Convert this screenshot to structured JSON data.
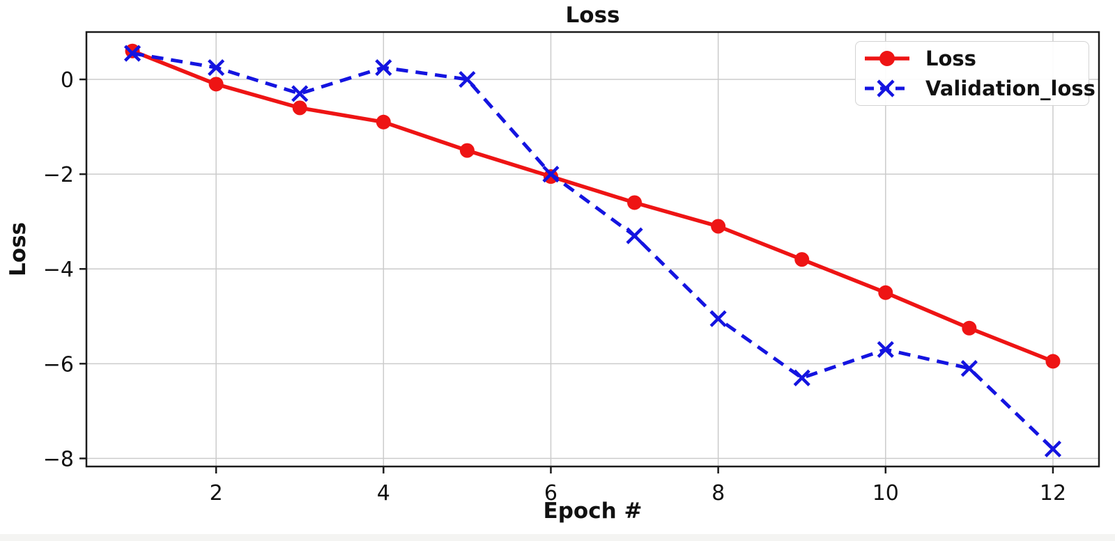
{
  "figure": {
    "background": "#ffffff",
    "bottom_strip_color": "#f4f4f2"
  },
  "chart_data": {
    "type": "line",
    "title": "Loss",
    "xlabel": "Epoch #",
    "ylabel": "Loss",
    "x": [
      1,
      2,
      3,
      4,
      5,
      6,
      7,
      8,
      9,
      10,
      11,
      12
    ],
    "series": [
      {
        "name": "Loss",
        "color": "#ee1414",
        "style": "solid",
        "marker": "circle",
        "values": [
          0.6,
          -0.1,
          -0.6,
          -0.9,
          -1.5,
          -2.05,
          -2.6,
          -3.1,
          -3.8,
          -4.5,
          -5.25,
          -5.95
        ]
      },
      {
        "name": "Validation_loss",
        "color": "#1414e0",
        "style": "dashed",
        "marker": "x",
        "values": [
          0.55,
          0.25,
          -0.3,
          0.25,
          0.0,
          -2.0,
          -3.3,
          -5.05,
          -6.3,
          -5.7,
          -6.1,
          -7.8
        ]
      }
    ],
    "xticks": {
      "values": [
        2,
        4,
        6,
        8,
        10,
        12
      ],
      "labels": [
        "2",
        "4",
        "6",
        "8",
        "10",
        "12"
      ]
    },
    "yticks": {
      "values": [
        0,
        -2,
        -4,
        -6,
        -8
      ],
      "labels": [
        "0",
        "−2",
        "−4",
        "−6",
        "−8"
      ]
    },
    "xlim": [
      0.45,
      12.55
    ],
    "ylim": [
      -8.17,
      1.0
    ],
    "grid": true,
    "grid_color": "#cbcbcb",
    "spine_color": "#1b1b1b",
    "tick_label_color": "#111111",
    "legend": {
      "position": "upper right",
      "items": [
        "Loss",
        "Validation_loss"
      ]
    }
  }
}
